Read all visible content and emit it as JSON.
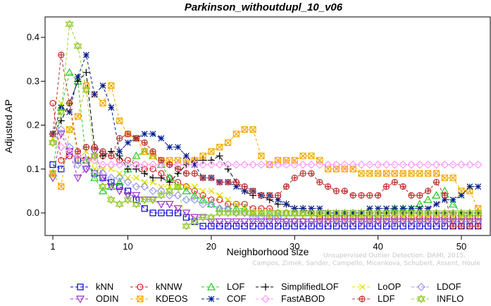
{
  "chart_data": {
    "type": "line",
    "title": "Parkinson_withoutdupl_10_v06",
    "xlabel": "Neighborhood size",
    "ylabel": "Adjusted AP",
    "xlim": [
      1,
      52
    ],
    "ylim": [
      -0.04,
      0.44
    ],
    "xticks": [
      1,
      10,
      20,
      30,
      40,
      50
    ],
    "yticks": [
      0.0,
      0.1,
      0.2,
      0.3,
      0.4
    ],
    "xtick_labels": [
      "1",
      "10",
      "20",
      "30",
      "40",
      "50"
    ],
    "ytick_labels": [
      "0.0",
      "0.1",
      "0.2",
      "0.3",
      "0.4"
    ],
    "grid": false,
    "legend_position": "bottom",
    "series": [
      {
        "name": "kNN",
        "color": "#0000cc",
        "marker": "square",
        "x_start": 1,
        "values": [
          0.11,
          0.1,
          0.14,
          0.12,
          0.12,
          0.09,
          0.08,
          0.07,
          0.06,
          0.05,
          0.03,
          0.01,
          0.0,
          0.0,
          0.0,
          0.0,
          -0.01,
          -0.02,
          -0.03,
          -0.03,
          -0.03,
          -0.03,
          -0.03,
          -0.03,
          -0.03,
          -0.03,
          -0.03,
          -0.03,
          -0.03,
          -0.03,
          -0.03,
          -0.03,
          -0.03,
          -0.03,
          -0.03,
          -0.03,
          -0.03,
          -0.03,
          -0.03,
          -0.03,
          -0.03,
          -0.03,
          -0.03,
          -0.03,
          -0.03,
          -0.03,
          -0.03,
          -0.03,
          -0.03,
          -0.03,
          -0.03,
          -0.03
        ]
      },
      {
        "name": "kNNW",
        "color": "#dd2222",
        "marker": "circle",
        "x_start": 1,
        "values": [
          0.25,
          0.12,
          0.13,
          0.13,
          0.12,
          0.13,
          0.13,
          0.13,
          0.12,
          0.12,
          0.11,
          0.1,
          0.1,
          0.09,
          0.08,
          0.07,
          0.06,
          0.05,
          0.04,
          0.03,
          0.03,
          0.02,
          0.02,
          0.02,
          0.01,
          0.01,
          0.01,
          0.0,
          0.0,
          0.0,
          0.0,
          0.0,
          -0.01,
          -0.01,
          -0.01,
          -0.01,
          -0.01,
          -0.01,
          -0.01,
          -0.01,
          -0.01,
          -0.01,
          -0.01,
          -0.01,
          -0.01,
          -0.01,
          -0.01,
          -0.01,
          -0.01,
          -0.01,
          -0.01,
          -0.01
        ]
      },
      {
        "name": "LOF",
        "color": "#22cc22",
        "marker": "triangle-up",
        "x_start": 1,
        "values": [
          0.09,
          0.24,
          0.32,
          0.3,
          0.12,
          0.08,
          0.05,
          0.06,
          0.07,
          0.1,
          0.13,
          0.14,
          0.13,
          0.11,
          0.08,
          0.06,
          0.05,
          0.04,
          0.03,
          0.02,
          0.01,
          0.01,
          0.01,
          0.01,
          0.0,
          0.0,
          0.0,
          0.0,
          0.0,
          0.0,
          0.0,
          0.0,
          0.0,
          0.0,
          0.0,
          0.0,
          0.0,
          0.0,
          0.0,
          0.0,
          0.0,
          0.01,
          0.01,
          0.01,
          0.02,
          0.03,
          0.04,
          0.05,
          0.02,
          0.0,
          0.0,
          0.0
        ]
      },
      {
        "name": "SimplifiedLOF",
        "color": "#000000",
        "marker": "plus",
        "x_start": 1,
        "values": [
          0.18,
          0.21,
          0.25,
          0.3,
          0.32,
          0.15,
          0.13,
          0.14,
          0.13,
          0.1,
          0.1,
          0.09,
          0.08,
          0.08,
          0.07,
          0.09,
          0.11,
          0.12,
          0.12,
          0.12,
          0.13,
          0.1,
          0.07,
          0.05,
          0.04,
          0.04,
          0.03,
          0.02,
          0.02,
          0.01,
          0.01,
          0.0,
          0.0,
          0.0,
          0.0,
          0.0,
          0.0,
          0.0,
          0.0,
          0.0,
          0.0,
          0.0,
          0.0,
          0.0,
          0.0,
          0.0,
          0.0,
          0.0,
          0.0,
          0.0,
          0.0,
          0.0
        ]
      },
      {
        "name": "LoOP",
        "color": "#dddd00",
        "marker": "x",
        "x_start": 1,
        "values": [
          0.17,
          0.25,
          0.25,
          0.12,
          0.14,
          0.1,
          0.1,
          0.1,
          0.09,
          0.08,
          0.08,
          0.07,
          0.07,
          0.06,
          0.06,
          0.06,
          0.06,
          0.06,
          0.05,
          0.05,
          0.04,
          0.03,
          0.02,
          0.01,
          0.0,
          0.0,
          -0.01,
          -0.01,
          -0.01,
          -0.01,
          -0.01,
          -0.01,
          -0.01,
          -0.01,
          -0.01,
          -0.01,
          -0.01,
          -0.01,
          -0.01,
          -0.01,
          -0.01,
          -0.01,
          -0.01,
          -0.01,
          -0.01,
          -0.01,
          -0.01,
          -0.01,
          -0.01,
          -0.01,
          -0.01,
          -0.01
        ]
      },
      {
        "name": "LDOF",
        "color": "#9999ee",
        "marker": "diamond",
        "x_start": 1,
        "values": [
          0.16,
          0.19,
          0.15,
          0.11,
          0.1,
          0.09,
          0.09,
          0.08,
          0.08,
          0.07,
          0.06,
          0.06,
          0.05,
          0.05,
          0.04,
          0.04,
          0.03,
          0.03,
          0.02,
          0.02,
          0.01,
          0.01,
          0.0,
          0.0,
          -0.01,
          -0.01,
          -0.01,
          -0.01,
          -0.02,
          -0.02,
          -0.02,
          -0.02,
          -0.02,
          -0.02,
          -0.02,
          -0.02,
          -0.02,
          -0.02,
          -0.02,
          -0.02,
          -0.02,
          -0.02,
          -0.02,
          -0.02,
          -0.02,
          -0.02,
          -0.02,
          -0.02,
          -0.02,
          -0.02,
          -0.02,
          -0.02
        ]
      },
      {
        "name": "ODIN",
        "color": "#9933cc",
        "marker": "triangle-down",
        "x_start": 1,
        "values": [
          0.08,
          0.18,
          0.14,
          0.08,
          0.1,
          0.14,
          0.08,
          0.06,
          0.05,
          0.04,
          0.04,
          0.03,
          0.03,
          0.02,
          0.02,
          0.01,
          0.0,
          -0.01,
          -0.01,
          -0.02,
          -0.02,
          -0.02,
          -0.02,
          -0.02,
          -0.02,
          -0.02,
          -0.02,
          -0.02,
          -0.02,
          -0.02,
          -0.02,
          -0.02,
          -0.02,
          -0.02,
          -0.02,
          -0.02,
          -0.02,
          -0.02,
          -0.02,
          -0.02,
          -0.02,
          -0.02,
          -0.02,
          -0.02,
          -0.02,
          -0.02,
          -0.02,
          -0.02,
          -0.02,
          -0.02,
          -0.02,
          -0.02
        ]
      },
      {
        "name": "KDEOS",
        "color": "#f5a800",
        "marker": "square-x",
        "x_start": 1,
        "values": [
          0.09,
          0.06,
          0.19,
          0.22,
          0.29,
          0.27,
          0.25,
          0.29,
          0.21,
          0.18,
          0.17,
          0.14,
          0.13,
          0.12,
          0.12,
          0.12,
          0.12,
          0.12,
          0.13,
          0.14,
          0.15,
          0.16,
          0.18,
          0.19,
          0.19,
          0.13,
          0.11,
          0.12,
          0.12,
          0.12,
          0.13,
          0.13,
          0.12,
          0.1,
          0.1,
          0.1,
          0.1,
          0.09,
          0.09,
          0.09,
          0.09,
          0.09,
          0.09,
          0.09,
          0.09,
          0.09,
          0.09,
          0.08,
          0.08,
          0.05,
          0.05,
          0.01
        ]
      },
      {
        "name": "COF",
        "color": "#001a8c",
        "marker": "asterisk",
        "x_start": 1,
        "values": [
          0.18,
          0.24,
          0.23,
          0.31,
          0.36,
          0.27,
          0.29,
          0.24,
          0.14,
          0.16,
          0.17,
          0.18,
          0.18,
          0.17,
          0.15,
          0.15,
          0.13,
          0.11,
          0.08,
          0.08,
          0.07,
          0.07,
          0.06,
          0.05,
          0.05,
          0.04,
          0.04,
          0.03,
          0.02,
          0.01,
          0.01,
          0.01,
          0.01,
          0.0,
          0.0,
          0.0,
          0.0,
          0.0,
          0.01,
          0.01,
          0.01,
          0.01,
          0.01,
          0.01,
          0.01,
          0.01,
          0.02,
          0.03,
          0.03,
          0.04,
          0.06,
          0.06
        ]
      },
      {
        "name": "FastABOD",
        "color": "#ff99ff",
        "marker": "diamond",
        "x_start": 1,
        "values": [
          0.16,
          0.15,
          0.14,
          0.13,
          0.12,
          0.12,
          0.11,
          0.11,
          0.11,
          0.11,
          0.11,
          0.11,
          0.11,
          0.11,
          0.11,
          0.11,
          0.11,
          0.11,
          0.11,
          0.11,
          0.11,
          0.11,
          0.11,
          0.11,
          0.11,
          0.11,
          0.11,
          0.11,
          0.11,
          0.11,
          0.11,
          0.11,
          0.11,
          0.11,
          0.11,
          0.11,
          0.11,
          0.11,
          0.11,
          0.11,
          0.11,
          0.11,
          0.11,
          0.11,
          0.11,
          0.11,
          0.11,
          0.11,
          0.11,
          0.11,
          0.11,
          0.11
        ]
      },
      {
        "name": "LDF",
        "color": "#bb3333",
        "marker": "circle-plus",
        "x_start": 1,
        "values": [
          0.18,
          0.36,
          0.25,
          0.14,
          0.15,
          0.15,
          0.14,
          0.13,
          0.17,
          0.18,
          0.17,
          0.16,
          0.14,
          0.12,
          0.11,
          0.1,
          0.09,
          0.09,
          0.08,
          0.08,
          0.07,
          0.07,
          0.07,
          0.06,
          0.05,
          0.04,
          0.04,
          0.04,
          0.06,
          0.08,
          0.09,
          0.09,
          0.07,
          0.06,
          0.05,
          0.05,
          0.04,
          0.04,
          0.04,
          0.04,
          0.06,
          0.07,
          0.06,
          0.04,
          0.04,
          0.05,
          0.07,
          0.04,
          -0.03,
          -0.03,
          -0.03,
          -0.03
        ]
      },
      {
        "name": "INFLO",
        "color": "#99cc33",
        "marker": "star",
        "x_start": 1,
        "values": [
          0.16,
          0.23,
          0.43,
          0.38,
          0.28,
          0.13,
          0.06,
          0.03,
          0.02,
          0.03,
          0.02,
          0.03,
          0.03,
          0.04,
          0.05,
          0.06,
          -0.03,
          -0.02,
          -0.01,
          -0.01,
          0.0,
          0.0,
          0.0,
          0.0,
          0.0,
          0.0,
          0.0,
          0.0,
          0.0,
          0.0,
          0.0,
          0.0,
          0.0,
          0.0,
          0.0,
          0.0,
          0.0,
          0.0,
          0.0,
          0.0,
          0.0,
          0.0,
          0.0,
          0.0,
          0.0,
          0.0,
          0.0,
          0.0,
          0.0,
          0.0,
          0.0,
          0.0
        ]
      }
    ],
    "legend_rows": [
      [
        "kNN",
        "kNNW",
        "LOF",
        "SimplifiedLOF",
        "LoOP",
        "LDOF"
      ],
      [
        "ODIN",
        "KDEOS",
        "COF",
        "FastABOD",
        "LDF",
        "INFLO"
      ]
    ]
  },
  "watermark": {
    "line1": "Unsupervised Outlier Detection. DAMI, 2015.",
    "line2": "Campos, Zimek, Sander, Campello, Micenkova, Schubert, Assent, Houle"
  }
}
